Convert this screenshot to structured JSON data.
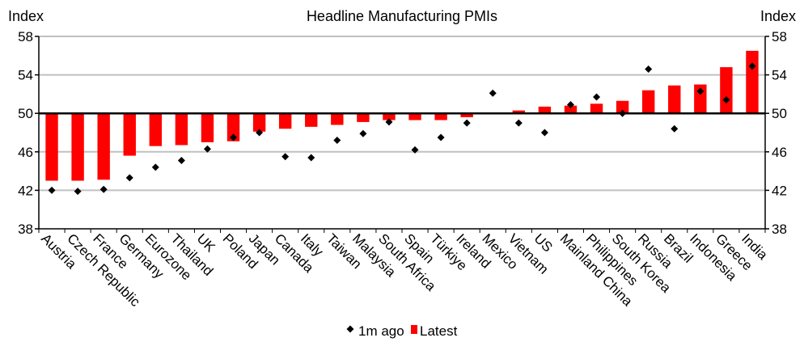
{
  "chart_data": {
    "type": "bar",
    "title": "Headline Manufacturing PMIs",
    "ylabel_left": "Index",
    "ylabel_right": "Index",
    "ylim": [
      38,
      58
    ],
    "yticks": [
      38,
      42,
      46,
      50,
      54,
      58
    ],
    "baseline": 50,
    "grid": true,
    "legend_position": "bottom",
    "categories": [
      "Austria",
      "Czech Republic",
      "France",
      "Germany",
      "Eurozone",
      "Thailand",
      "UK",
      "Poland",
      "Japan",
      "Canada",
      "Italy",
      "Taiwan",
      "Malaysia",
      "South Africa",
      "Spain",
      "Türkiye",
      "Ireland",
      "Mexico",
      "Vietnam",
      "US",
      "Mainland China",
      "Philippines",
      "South Korea",
      "Russia",
      "Brazil",
      "Indonesia",
      "Greece",
      "India"
    ],
    "series": [
      {
        "name": "Latest",
        "kind": "bar",
        "color": "#ff0000",
        "values": [
          43.0,
          43.0,
          43.1,
          45.6,
          46.6,
          46.7,
          47.0,
          47.1,
          48.1,
          48.4,
          48.6,
          48.8,
          49.1,
          49.3,
          49.3,
          49.3,
          49.6,
          50.0,
          50.3,
          50.7,
          50.8,
          51.0,
          51.3,
          52.4,
          52.9,
          53.0,
          54.8,
          56.5
        ]
      },
      {
        "name": "1m ago",
        "kind": "marker",
        "color": "#000000",
        "values": [
          42.0,
          41.9,
          42.1,
          43.3,
          44.4,
          45.1,
          46.3,
          47.5,
          48.0,
          45.5,
          45.4,
          47.2,
          47.9,
          49.1,
          46.2,
          47.5,
          49.0,
          52.1,
          49.0,
          48.0,
          50.9,
          51.7,
          50.0,
          54.6,
          48.4,
          52.3,
          51.4,
          54.9
        ]
      }
    ]
  }
}
